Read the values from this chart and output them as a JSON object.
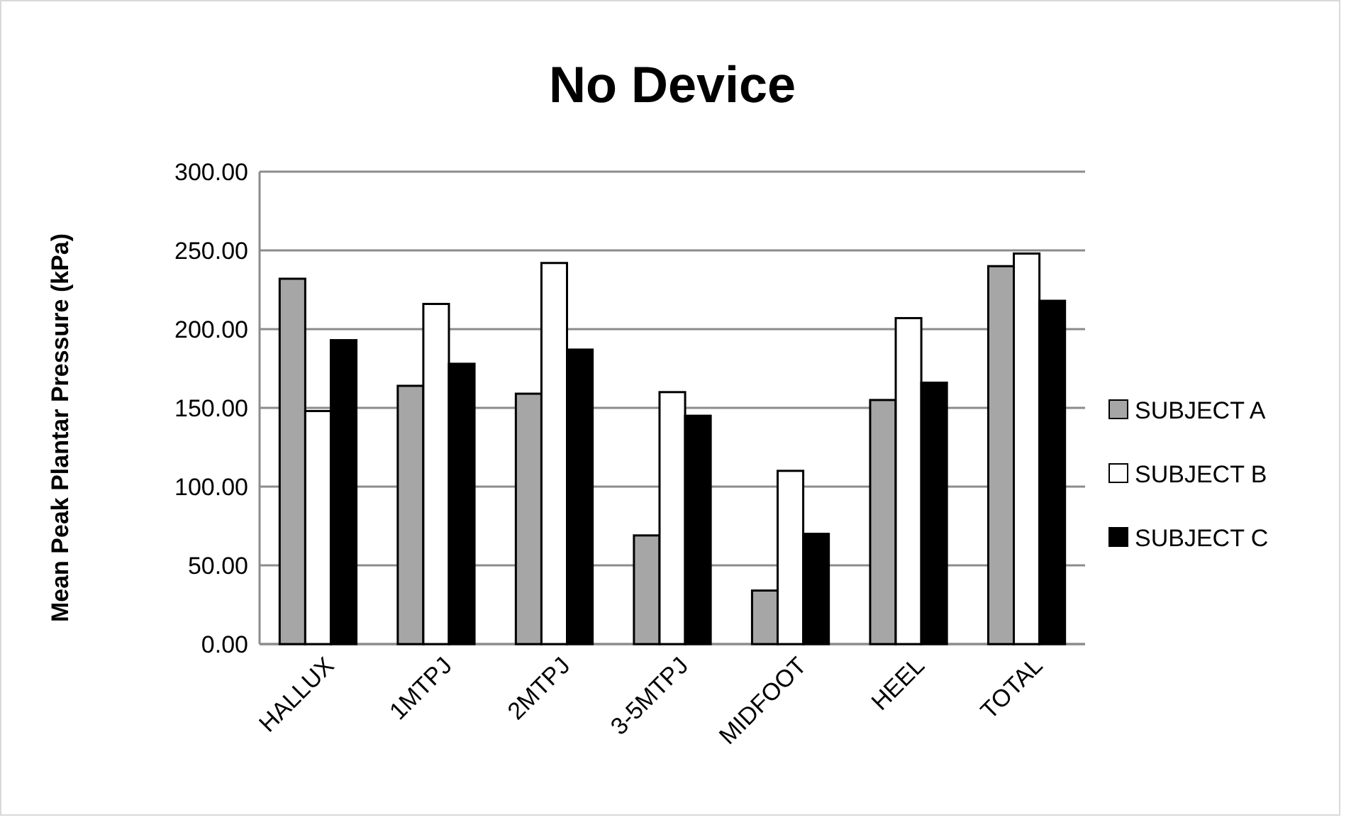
{
  "chart_data": {
    "type": "bar",
    "title": "No Device",
    "ylabel": "Mean Peak Plantar Pressure (kPa)",
    "categories": [
      "HALLUX",
      "1MTPJ",
      "2MTPJ",
      "3-5MTPJ",
      "MIDFOOT",
      "HEEL",
      "TOTAL"
    ],
    "series": [
      {
        "name": "SUBJECT A",
        "color": "#a6a6a6",
        "values": [
          232,
          164,
          159,
          69,
          34,
          155,
          240
        ]
      },
      {
        "name": "SUBJECT B",
        "color": "#ffffff",
        "values": [
          148,
          216,
          242,
          160,
          110,
          207,
          248
        ]
      },
      {
        "name": "SUBJECT C",
        "color": "#000000",
        "values": [
          193,
          178,
          187,
          145,
          70,
          166,
          218
        ]
      }
    ],
    "ylim": [
      0,
      300
    ],
    "yticks": [
      {
        "value": 0,
        "label": "0.00"
      },
      {
        "value": 50,
        "label": "50.00"
      },
      {
        "value": 100,
        "label": "100.00"
      },
      {
        "value": 150,
        "label": "150.00"
      },
      {
        "value": 200,
        "label": "200.00"
      },
      {
        "value": 250,
        "label": "250.00"
      },
      {
        "value": 300,
        "label": "300.00"
      }
    ],
    "grid": "y",
    "legend": "right"
  }
}
